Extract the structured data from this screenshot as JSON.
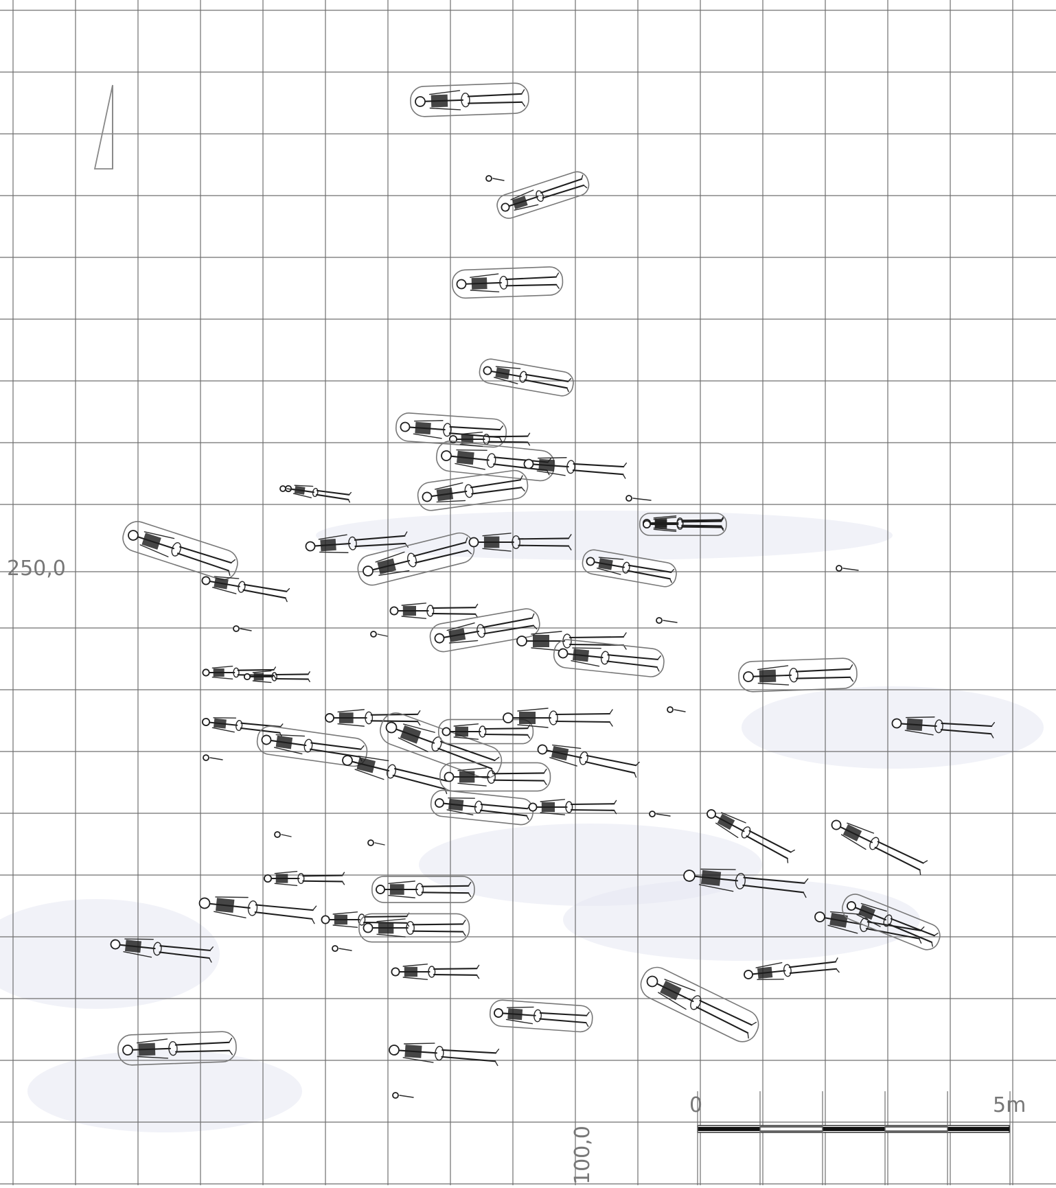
{
  "plan": {
    "labels": {
      "coordinate_y": "250,0",
      "coordinate_x": "100,0"
    },
    "scale_bar": {
      "start": "0",
      "end": "5m",
      "segments": 5
    },
    "colors": {
      "background": "#ffffff",
      "grid": "#6f6f6f",
      "bones": "#1e1e1e",
      "outline": "#777777"
    }
  }
}
